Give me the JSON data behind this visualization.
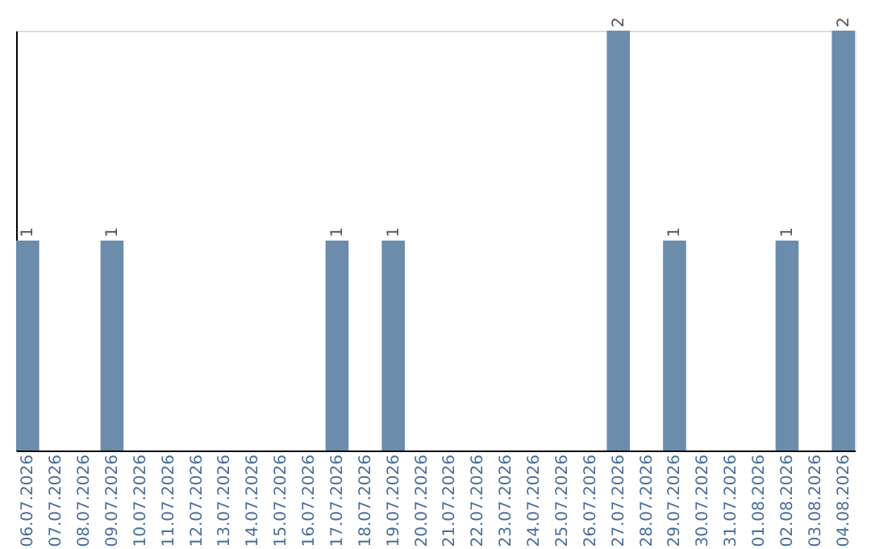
{
  "chart_data": {
    "type": "bar",
    "categories": [
      "06.07.2026",
      "07.07.2026",
      "08.07.2026",
      "09.07.2026",
      "10.07.2026",
      "11.07.2026",
      "12.07.2026",
      "13.07.2026",
      "14.07.2026",
      "15.07.2026",
      "16.07.2026",
      "17.07.2026",
      "18.07.2026",
      "19.07.2026",
      "20.07.2026",
      "21.07.2026",
      "22.07.2026",
      "23.07.2026",
      "24.07.2026",
      "25.07.2026",
      "26.07.2026",
      "27.07.2026",
      "28.07.2026",
      "29.07.2026",
      "30.07.2026",
      "31.07.2026",
      "01.08.2026",
      "02.08.2026",
      "03.08.2026",
      "04.08.2026"
    ],
    "values": [
      1,
      0,
      0,
      1,
      0,
      0,
      0,
      0,
      0,
      0,
      0,
      1,
      0,
      1,
      0,
      0,
      0,
      0,
      0,
      0,
      0,
      2,
      0,
      1,
      0,
      0,
      0,
      1,
      0,
      2
    ],
    "value_labels": [
      "1",
      null,
      null,
      "1",
      null,
      null,
      null,
      null,
      null,
      null,
      null,
      "1",
      null,
      "1",
      null,
      null,
      null,
      null,
      null,
      null,
      null,
      "2",
      null,
      "1",
      null,
      null,
      null,
      "1",
      null,
      "2"
    ],
    "color": "#6b8cab",
    "ylim": [
      0,
      2
    ],
    "grid": false,
    "tick_labels": "x"
  }
}
